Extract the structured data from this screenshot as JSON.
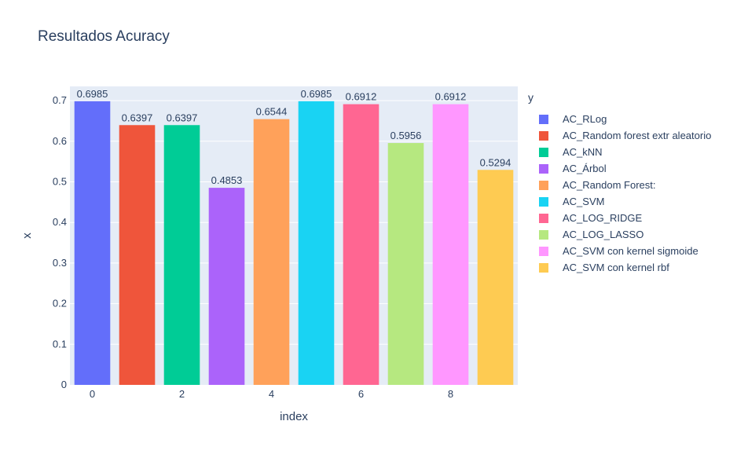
{
  "chart_data": {
    "type": "bar",
    "title": "Resultados Acuracy",
    "xlabel": "index",
    "ylabel": "x",
    "legend_title": "y",
    "legend_position": "right",
    "grid": true,
    "x": [
      0,
      1,
      2,
      3,
      4,
      5,
      6,
      7,
      8,
      9
    ],
    "x_ticks": [
      "0",
      "2",
      "4",
      "6",
      "8"
    ],
    "y_ticks": [
      "0",
      "0.1",
      "0.2",
      "0.3",
      "0.4",
      "0.5",
      "0.6",
      "0.7"
    ],
    "ylim": [
      0,
      0.735
    ],
    "xlim": [
      -0.5,
      9.5
    ],
    "series": [
      {
        "name": "AC_RLog",
        "x": 0,
        "value": 0.6985,
        "label": "0.6985",
        "color": "#636efa"
      },
      {
        "name": "AC_Random forest extr aleatorio",
        "x": 1,
        "value": 0.6397,
        "label": "0.6397",
        "color": "#EF553B"
      },
      {
        "name": "AC_kNN",
        "x": 2,
        "value": 0.6397,
        "label": "0.6397",
        "color": "#00cc96"
      },
      {
        "name": "AC_Árbol",
        "x": 3,
        "value": 0.4853,
        "label": "0.4853",
        "color": "#ab63fa"
      },
      {
        "name": "AC_Random Forest:",
        "x": 4,
        "value": 0.6544,
        "label": "0.6544",
        "color": "#FFA15A"
      },
      {
        "name": "AC_SVM",
        "x": 5,
        "value": 0.6985,
        "label": "0.6985",
        "color": "#19d3f3"
      },
      {
        "name": "AC_LOG_RIDGE",
        "x": 6,
        "value": 0.6912,
        "label": "0.6912",
        "color": "#FF6692"
      },
      {
        "name": "AC_LOG_LASSO",
        "x": 7,
        "value": 0.5956,
        "label": "0.5956",
        "color": "#B6E880"
      },
      {
        "name": "AC_SVM con kernel sigmoide",
        "x": 8,
        "value": 0.6912,
        "label": "0.6912",
        "color": "#FF97FF"
      },
      {
        "name": "AC_SVM con kernel rbf",
        "x": 9,
        "value": 0.5294,
        "label": "0.5294",
        "color": "#FECB52"
      }
    ]
  }
}
